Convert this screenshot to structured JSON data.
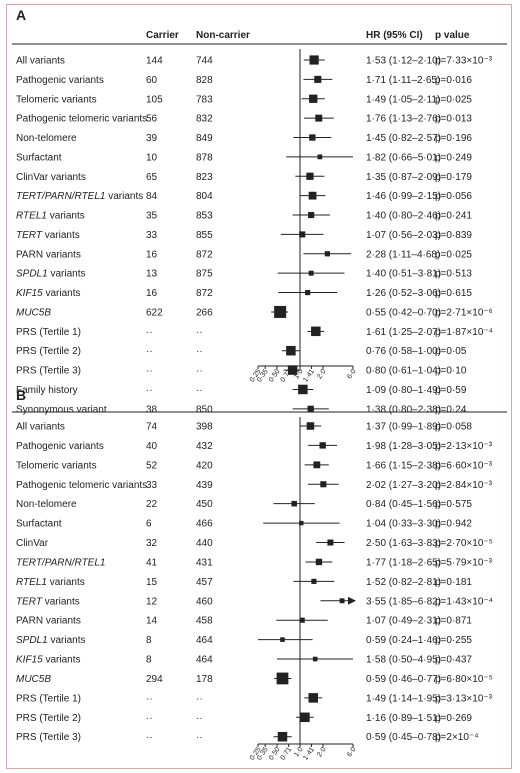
{
  "panels": [
    {
      "label": "A",
      "headers": {
        "carrier": "Carrier",
        "noncarrier": "Non-carrier",
        "hr": "HR (95% CI)",
        "p": "p value"
      },
      "rows": [
        {
          "name": "All variants",
          "carrier": "144",
          "noncarrier": "744",
          "hr_text": "1·53 (1·12–2·10)",
          "p": "p=7·33×10⁻³",
          "hr": 1.53,
          "lo": 1.12,
          "hi": 2.1
        },
        {
          "name": "Pathogenic variants",
          "carrier": "60",
          "noncarrier": "828",
          "hr_text": "1·71 (1·11–2·65)",
          "p": "p=0·016",
          "hr": 1.71,
          "lo": 1.11,
          "hi": 2.65
        },
        {
          "name": "Telomeric variants",
          "carrier": "105",
          "noncarrier": "783",
          "hr_text": "1·49 (1·05–2·11)",
          "p": "p=0·025",
          "hr": 1.49,
          "lo": 1.05,
          "hi": 2.11
        },
        {
          "name": "Pathogenic telomeric variants",
          "carrier": "56",
          "noncarrier": "832",
          "hr_text": "1·76 (1·13–2·76)",
          "p": "p=0·013",
          "hr": 1.76,
          "lo": 1.13,
          "hi": 2.76
        },
        {
          "name": "Non-telomere",
          "carrier": "39",
          "noncarrier": "849",
          "hr_text": "1·45 (0·82–2·57)",
          "p": "p=0·196",
          "hr": 1.45,
          "lo": 0.82,
          "hi": 2.57
        },
        {
          "name": "Surfactant",
          "carrier": "10",
          "noncarrier": "878",
          "hr_text": "1·82 (0·66–5·01)",
          "p": "p=0·249",
          "hr": 1.82,
          "lo": 0.66,
          "hi": 5.01
        },
        {
          "name": "ClinVar variants",
          "carrier": "65",
          "noncarrier": "823",
          "hr_text": "1·35 (0·87–2·09)",
          "p": "p=0·179",
          "hr": 1.35,
          "lo": 0.87,
          "hi": 2.09
        },
        {
          "name": "TERT/PARN/RTEL1 variants",
          "italic": "TERT/PARN/RTEL1",
          "rest": " variants",
          "carrier": "84",
          "noncarrier": "804",
          "hr_text": "1·46 (0·99–2·15)",
          "p": "p=0·056",
          "hr": 1.46,
          "lo": 0.99,
          "hi": 2.15
        },
        {
          "name": "RTEL1 variants",
          "italic": "RTEL1",
          "rest": " variants",
          "carrier": "35",
          "noncarrier": "853",
          "hr_text": "1·40 (0·80–2·46)",
          "p": "p=0·241",
          "hr": 1.4,
          "lo": 0.8,
          "hi": 2.46
        },
        {
          "name": "TERT variants",
          "italic": "TERT",
          "rest": " variants",
          "carrier": "33",
          "noncarrier": "855",
          "hr_text": "1·07 (0·56–2·03)",
          "p": "p=0·839",
          "hr": 1.07,
          "lo": 0.56,
          "hi": 2.03
        },
        {
          "name": "PARN variants",
          "carrier": "16",
          "noncarrier": "872",
          "hr_text": "2·28 (1·11–4·68)",
          "p": "p=0·025",
          "hr": 2.28,
          "lo": 1.11,
          "hi": 4.68
        },
        {
          "name": "SPDL1 variants",
          "italic": "SPDL1",
          "rest": " variants",
          "carrier": "13",
          "noncarrier": "875",
          "hr_text": "1·40 (0·51–3·81)",
          "p": "p=0·513",
          "hr": 1.4,
          "lo": 0.51,
          "hi": 3.81
        },
        {
          "name": "KIF15 variants",
          "italic": "KIF15",
          "rest": " variants",
          "carrier": "16",
          "noncarrier": "872",
          "hr_text": "1·26 (0·52–3·06)",
          "p": "p=0·615",
          "hr": 1.26,
          "lo": 0.52,
          "hi": 3.06
        },
        {
          "name": "MUC5B",
          "italic": "MUC5B",
          "rest": "",
          "carrier": "622",
          "noncarrier": "266",
          "hr_text": "0·55 (0·42–0·70)",
          "p": "p=2·71×10⁻⁶",
          "hr": 0.55,
          "lo": 0.42,
          "hi": 0.7
        },
        {
          "name": "PRS (Tertile 1)",
          "carrier": "··",
          "noncarrier": "··",
          "hr_text": "1·61 (1·25–2·07)",
          "p": "p=1·87×10⁻⁴",
          "hr": 1.61,
          "lo": 1.25,
          "hi": 2.07
        },
        {
          "name": "PRS (Tertile 2)",
          "carrier": "··",
          "noncarrier": "··",
          "hr_text": "0·76 (0·58–1·00)",
          "p": "p=0·05",
          "hr": 0.76,
          "lo": 0.58,
          "hi": 1.0
        },
        {
          "name": "PRS (Tertile 3)",
          "carrier": "··",
          "noncarrier": "··",
          "hr_text": "0·80 (0·61–1·04)",
          "p": "p=0·10",
          "hr": 0.8,
          "lo": 0.61,
          "hi": 1.04
        },
        {
          "name": "Family history",
          "carrier": "··",
          "noncarrier": "··",
          "hr_text": "1·09 (0·80–1·49)",
          "p": "p=0·59",
          "hr": 1.09,
          "lo": 0.8,
          "hi": 1.49
        },
        {
          "name": "Synonymous variant",
          "carrier": "38",
          "noncarrier": "850",
          "hr_text": "1·38 (0·80–2·38)",
          "p": "p=0·24",
          "hr": 1.38,
          "lo": 0.8,
          "hi": 2.38
        }
      ]
    },
    {
      "label": "B",
      "headers": {
        "carrier": "",
        "noncarrier": "",
        "hr": "",
        "p": ""
      },
      "rows": [
        {
          "name": "All variants",
          "carrier": "74",
          "noncarrier": "398",
          "hr_text": "1·37 (0·99–1·89)",
          "p": "p=0·058",
          "hr": 1.37,
          "lo": 0.99,
          "hi": 1.89
        },
        {
          "name": "Pathogenic variants",
          "carrier": "40",
          "noncarrier": "432",
          "hr_text": "1·98 (1·28–3·05)",
          "p": "p=2·13×10⁻³",
          "hr": 1.98,
          "lo": 1.28,
          "hi": 3.05
        },
        {
          "name": "Telomeric variants",
          "carrier": "52",
          "noncarrier": "420",
          "hr_text": "1·66 (1·15–2·38)",
          "p": "p=6·60×10⁻³",
          "hr": 1.66,
          "lo": 1.15,
          "hi": 2.38
        },
        {
          "name": "Pathogenic telomeric variants",
          "carrier": "33",
          "noncarrier": "439",
          "hr_text": "2·02 (1·27–3·20)",
          "p": "p=2·84×10⁻³",
          "hr": 2.02,
          "lo": 1.27,
          "hi": 3.2
        },
        {
          "name": "Non-telomere",
          "carrier": "22",
          "noncarrier": "450",
          "hr_text": "0·84 (0·45–1·56)",
          "p": "p=0·575",
          "hr": 0.84,
          "lo": 0.45,
          "hi": 1.56
        },
        {
          "name": "Surfactant",
          "carrier": "6",
          "noncarrier": "466",
          "hr_text": "1·04 (0·33–3·30)",
          "p": "p=0·942",
          "hr": 1.04,
          "lo": 0.33,
          "hi": 3.3
        },
        {
          "name": "ClinVar",
          "carrier": "32",
          "noncarrier": "440",
          "hr_text": "2·50 (1·63–3·83)",
          "p": "p=2·70×10⁻⁵",
          "hr": 2.5,
          "lo": 1.63,
          "hi": 3.83
        },
        {
          "name": "TERT/PARN/RTEL1",
          "italic": "TERT/PARN/RTEL1",
          "rest": "",
          "carrier": "41",
          "noncarrier": "431",
          "hr_text": "1·77 (1·18–2·65)",
          "p": "p=5·79×10⁻³",
          "hr": 1.77,
          "lo": 1.18,
          "hi": 2.65
        },
        {
          "name": "RTEL1 variants",
          "italic": "RTEL1",
          "rest": " variants",
          "carrier": "15",
          "noncarrier": "457",
          "hr_text": "1·52 (0·82–2·81)",
          "p": "p=0·181",
          "hr": 1.52,
          "lo": 0.82,
          "hi": 2.81
        },
        {
          "name": "TERT variants",
          "italic": "TERT",
          "rest": " variants",
          "carrier": "12",
          "noncarrier": "460",
          "hr_text": "3·55 (1·85–6·82)",
          "p": "p=1·43×10⁻⁴",
          "hr": 3.55,
          "lo": 1.85,
          "hi": 6.82,
          "arrow": true
        },
        {
          "name": "PARN variants",
          "carrier": "14",
          "noncarrier": "458",
          "hr_text": "1·07 (0·49–2·31)",
          "p": "p=0·871",
          "hr": 1.07,
          "lo": 0.49,
          "hi": 2.31
        },
        {
          "name": "SPDL1 variants",
          "italic": "SPDL1",
          "rest": " variants",
          "carrier": "8",
          "noncarrier": "464",
          "hr_text": "0·59 (0·24–1·46)",
          "p": "p=0·255",
          "hr": 0.59,
          "lo": 0.24,
          "hi": 1.46
        },
        {
          "name": "KIF15 variants",
          "italic": "KIF15",
          "rest": " variants",
          "carrier": "8",
          "noncarrier": "464",
          "hr_text": "1·58 (0·50–4·95)",
          "p": "p=0·437",
          "hr": 1.58,
          "lo": 0.5,
          "hi": 4.95
        },
        {
          "name": "MUC5B",
          "italic": "MUC5B",
          "rest": "",
          "carrier": "294",
          "noncarrier": "178",
          "hr_text": "0·59 (0·46–0·77)",
          "p": "p=6·80×10⁻⁵",
          "hr": 0.59,
          "lo": 0.46,
          "hi": 0.77
        },
        {
          "name": "PRS (Tertile 1)",
          "carrier": "··",
          "noncarrier": "··",
          "hr_text": "1·49 (1·14–1·95)",
          "p": "p=3·13×10⁻³",
          "hr": 1.49,
          "lo": 1.14,
          "hi": 1.95
        },
        {
          "name": "PRS (Tertile 2)",
          "carrier": "··",
          "noncarrier": "··",
          "hr_text": "1·16 (0·89–1·51)",
          "p": "p=0·269",
          "hr": 1.16,
          "lo": 0.89,
          "hi": 1.51
        },
        {
          "name": "PRS (Tertile 3)",
          "carrier": "··",
          "noncarrier": "··",
          "hr_text": "0·59 (0·45–0·78)",
          "p": "p=2×10⁻⁴",
          "hr": 0.59,
          "lo": 0.45,
          "hi": 0.78
        }
      ]
    }
  ],
  "axis_ticks": [
    0.25,
    0.35,
    0.5,
    0.71,
    1.0,
    1.41,
    2.0,
    6.0
  ],
  "axis_tick_labels": [
    "0·25",
    "0·35",
    "0·50",
    "0·71",
    "1·0",
    "1·41",
    "2·0",
    "6·0"
  ],
  "colors": {
    "marker": "#222222",
    "frame": "#d9a79c",
    "rule": "#222222"
  },
  "chart_data": [
    {
      "type": "forest",
      "panel": "A",
      "scale": "log",
      "reference_line": 1.0,
      "xlim": [
        0.25,
        6.0
      ],
      "categories": [
        "All variants",
        "Pathogenic variants",
        "Telomeric variants",
        "Pathogenic telomeric variants",
        "Non-telomere",
        "Surfactant",
        "ClinVar variants",
        "TERT/PARN/RTEL1 variants",
        "RTEL1 variants",
        "TERT variants",
        "PARN variants",
        "SPDL1 variants",
        "KIF15 variants",
        "MUC5B",
        "PRS (Tertile 1)",
        "PRS (Tertile 2)",
        "PRS (Tertile 3)",
        "Family history",
        "Synonymous variant"
      ],
      "hr": [
        1.53,
        1.71,
        1.49,
        1.76,
        1.45,
        1.82,
        1.35,
        1.46,
        1.4,
        1.07,
        2.28,
        1.4,
        1.26,
        0.55,
        1.61,
        0.76,
        0.8,
        1.09,
        1.38
      ],
      "ci_low": [
        1.12,
        1.11,
        1.05,
        1.13,
        0.82,
        0.66,
        0.87,
        0.99,
        0.8,
        0.56,
        1.11,
        0.51,
        0.52,
        0.42,
        1.25,
        0.58,
        0.61,
        0.8,
        0.8
      ],
      "ci_high": [
        2.1,
        2.65,
        2.11,
        2.76,
        2.57,
        5.01,
        2.09,
        2.15,
        2.46,
        2.03,
        4.68,
        3.81,
        3.06,
        0.7,
        2.07,
        1.0,
        1.04,
        1.49,
        2.38
      ]
    },
    {
      "type": "forest",
      "panel": "B",
      "scale": "log",
      "reference_line": 1.0,
      "xlim": [
        0.25,
        6.0
      ],
      "categories": [
        "All variants",
        "Pathogenic variants",
        "Telomeric variants",
        "Pathogenic telomeric variants",
        "Non-telomere",
        "Surfactant",
        "ClinVar",
        "TERT/PARN/RTEL1",
        "RTEL1 variants",
        "TERT variants",
        "PARN variants",
        "SPDL1 variants",
        "KIF15 variants",
        "MUC5B",
        "PRS (Tertile 1)",
        "PRS (Tertile 2)",
        "PRS (Tertile 3)"
      ],
      "hr": [
        1.37,
        1.98,
        1.66,
        2.02,
        0.84,
        1.04,
        2.5,
        1.77,
        1.52,
        3.55,
        1.07,
        0.59,
        1.58,
        0.59,
        1.49,
        1.16,
        0.59
      ],
      "ci_low": [
        0.99,
        1.28,
        1.15,
        1.27,
        0.45,
        0.33,
        1.63,
        1.18,
        0.82,
        1.85,
        0.49,
        0.24,
        0.5,
        0.46,
        1.14,
        0.89,
        0.45
      ],
      "ci_high": [
        1.89,
        3.05,
        2.38,
        3.2,
        1.56,
        3.3,
        3.83,
        2.65,
        2.81,
        6.82,
        2.31,
        1.46,
        4.95,
        0.77,
        1.95,
        1.51,
        0.78
      ]
    }
  ]
}
